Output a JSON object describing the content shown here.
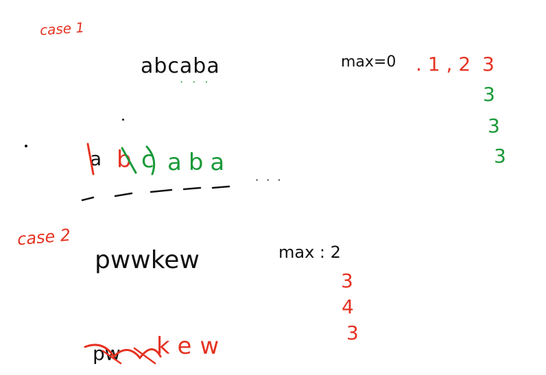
{
  "case1": {
    "label": "case 1",
    "string": "abcaba",
    "dots": "· · ·",
    "max_label": "max=0",
    "red_values": ". 1 , 2",
    "red_three": "3",
    "green_values": [
      "3",
      "3",
      "3"
    ],
    "window": {
      "first_char": "a",
      "crossed_red": "b",
      "crossed_green": "c",
      "rest": "aba"
    },
    "trailing_dots": "· · ·"
  },
  "case2": {
    "label": "case 2",
    "string": "pwwkew",
    "max_label": "max : 2",
    "values": [
      "3",
      "4",
      "3"
    ],
    "window": {
      "prefix": "pw",
      "rest": "kew"
    }
  },
  "colors": {
    "red": "#e53222",
    "green": "#1a9a3a",
    "ink": "#111111"
  }
}
